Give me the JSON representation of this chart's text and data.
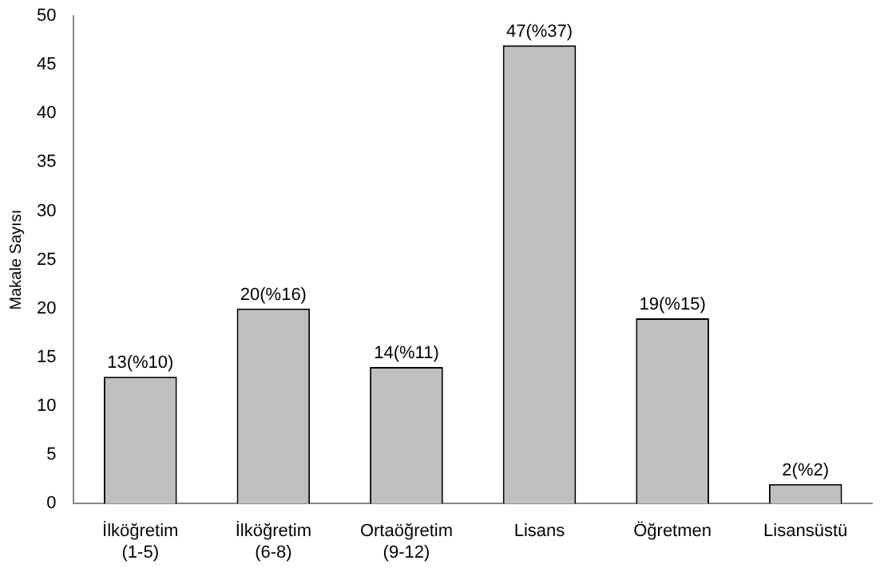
{
  "chart_data": {
    "type": "bar",
    "ylabel": "Makale Sayısı",
    "categories": [
      "İlköğretim\n(1-5)",
      "İlköğretim\n(6-8)",
      "Ortaöğretim\n(9-12)",
      "Lisans",
      "Öğretmen",
      "Lisansüstü"
    ],
    "values": [
      13,
      20,
      14,
      47,
      19,
      2
    ],
    "value_labels": [
      "13(%10)",
      "20(%16)",
      "14(%11)",
      "47(%37)",
      "19(%15)",
      "2(%2)"
    ],
    "color": "#bfbfbf",
    "ylim": [
      0,
      50
    ],
    "yticks": [
      0,
      5,
      10,
      15,
      20,
      25,
      30,
      35,
      40,
      45,
      50
    ],
    "grid": false,
    "legend": false
  }
}
